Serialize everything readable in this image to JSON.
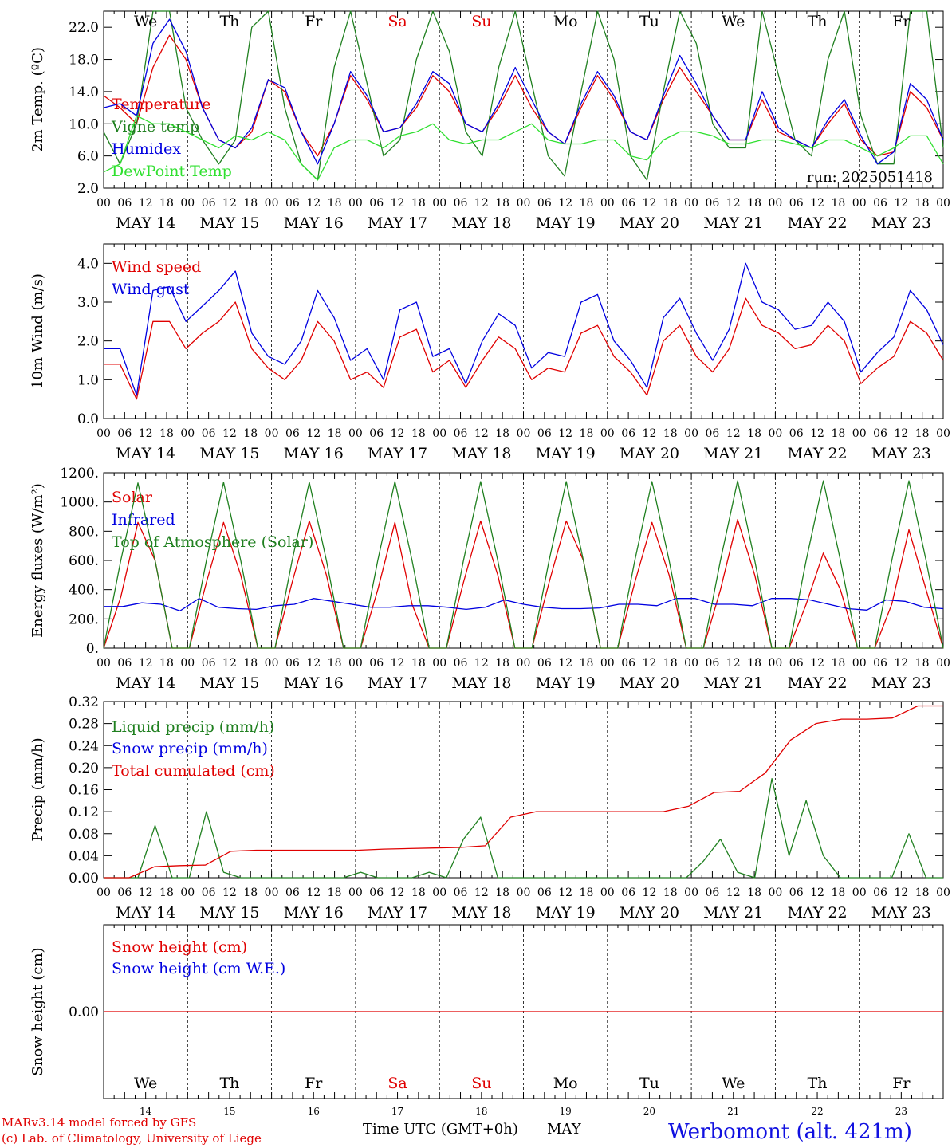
{
  "colors": {
    "temperature": "#e00000",
    "vigne": "#208020",
    "humidex": "#0000e0",
    "dewpoint": "#30e030",
    "weekend": "#e00000",
    "text": "#000000",
    "station": "#1010e0"
  },
  "footer": {
    "model_line1": "MARv3.14 model forced by GFS",
    "model_line2": "(c) Lab. of Climatology, University of Liege",
    "time_label": "Time UTC (GMT+0h)",
    "month_label": "MAY",
    "station": "Werbomont (alt. 421m)"
  },
  "days": [
    {
      "wd": "We",
      "date": "MAY 14",
      "num": "14",
      "weekend": false
    },
    {
      "wd": "Th",
      "date": "MAY 15",
      "num": "15",
      "weekend": false
    },
    {
      "wd": "Fr",
      "date": "MAY 16",
      "num": "16",
      "weekend": false
    },
    {
      "wd": "Sa",
      "date": "MAY 17",
      "num": "17",
      "weekend": true
    },
    {
      "wd": "Su",
      "date": "MAY 18",
      "num": "18",
      "weekend": true
    },
    {
      "wd": "Mo",
      "date": "MAY 19",
      "num": "19",
      "weekend": false
    },
    {
      "wd": "Tu",
      "date": "MAY 20",
      "num": "20",
      "weekend": false
    },
    {
      "wd": "We",
      "date": "MAY 21",
      "num": "21",
      "weekend": false
    },
    {
      "wd": "Th",
      "date": "MAY 22",
      "num": "22",
      "weekend": false
    },
    {
      "wd": "Fr",
      "date": "MAY 23",
      "num": "23",
      "weekend": false
    }
  ],
  "hour_ticks": [
    "00",
    "06",
    "12",
    "18"
  ],
  "end_tick": "00",
  "chart_data": [
    {
      "id": "temp",
      "type": "line",
      "ylabel": "2m Temp. (ºC)",
      "ylim": [
        2,
        24
      ],
      "yticks": [
        2.0,
        6.0,
        10.0,
        14.0,
        18.0,
        22.0
      ],
      "ytick_labels": [
        "2.0",
        "6.0",
        "10.0",
        "14.0",
        "18.0",
        "22.0"
      ],
      "run_label": "run: 2025051418",
      "series": [
        {
          "name": "Temperature",
          "color": "#e00000",
          "values": [
            13.5,
            12,
            10,
            17,
            21,
            18,
            12,
            8,
            7,
            9,
            15.5,
            14,
            9,
            6,
            10,
            16,
            13,
            9,
            9.5,
            12,
            16,
            14,
            10,
            9,
            12,
            16,
            12,
            9,
            7.5,
            12,
            16,
            13,
            9,
            8,
            13,
            17,
            14,
            11,
            8,
            8,
            13,
            9,
            8,
            7,
            10,
            12.5,
            8,
            6,
            6.5,
            14,
            12,
            8
          ]
        },
        {
          "name": "Vigne temp",
          "color": "#208020",
          "values": [
            9,
            5,
            10,
            24,
            24,
            12,
            8,
            5,
            8,
            22,
            24,
            12,
            5,
            3,
            17,
            24,
            15,
            6,
            8,
            18,
            24,
            19,
            9,
            6,
            17,
            24,
            15,
            6,
            3.5,
            14,
            24,
            18,
            6,
            3,
            14,
            24,
            20,
            10,
            7,
            7,
            24,
            16,
            8,
            6,
            18,
            24,
            11,
            5,
            5,
            24,
            24,
            7
          ]
        },
        {
          "name": "Humidex",
          "color": "#0000e0",
          "values": [
            12,
            12.5,
            11,
            20,
            23,
            19,
            12,
            8,
            7,
            9.5,
            15.5,
            14.5,
            9,
            5,
            10,
            16.5,
            13.5,
            9,
            9.5,
            12.5,
            16.5,
            15,
            10,
            9,
            12.5,
            17,
            13,
            9,
            7.5,
            12.5,
            16.5,
            13.5,
            9,
            8,
            13.5,
            18.5,
            15,
            11,
            8,
            8,
            14,
            9.5,
            8,
            7,
            10.5,
            13,
            8.5,
            5,
            6.5,
            15,
            13,
            8
          ]
        },
        {
          "name": "DewPoint Temp",
          "color": "#30e030",
          "values": [
            4,
            5,
            11,
            10,
            10,
            9,
            8,
            7,
            8.5,
            8,
            9,
            8,
            5,
            3,
            7,
            8,
            8,
            7,
            8.5,
            9,
            10,
            8,
            7.5,
            8,
            8,
            9,
            10,
            8,
            7.5,
            7.5,
            8,
            8,
            6,
            5.5,
            8,
            9,
            9,
            8.5,
            7.5,
            7.5,
            8,
            8,
            7.5,
            7,
            8,
            8,
            7,
            6,
            7,
            8.5,
            8.5,
            5
          ]
        }
      ],
      "day_annotations": true
    },
    {
      "id": "wind",
      "type": "line",
      "ylabel": "10m Wind (m/s)",
      "ylim": [
        0,
        4.5
      ],
      "yticks": [
        0,
        1,
        2,
        3,
        4
      ],
      "ytick_labels": [
        "0.0",
        "1.0",
        "2.0",
        "3.0",
        "4.0"
      ],
      "series": [
        {
          "name": "Wind speed",
          "color": "#e00000",
          "values": [
            1.4,
            1.4,
            0.5,
            2.5,
            2.5,
            1.8,
            2.2,
            2.5,
            3.0,
            1.8,
            1.3,
            1.0,
            1.5,
            2.5,
            2.0,
            1.0,
            1.2,
            0.8,
            2.1,
            2.3,
            1.2,
            1.5,
            0.8,
            1.5,
            2.1,
            1.8,
            1.0,
            1.3,
            1.2,
            2.2,
            2.4,
            1.6,
            1.2,
            0.6,
            2.0,
            2.4,
            1.6,
            1.2,
            1.8,
            3.1,
            2.4,
            2.2,
            1.8,
            1.9,
            2.4,
            2.0,
            0.9,
            1.3,
            1.6,
            2.5,
            2.2,
            1.5
          ]
        },
        {
          "name": "Wind gust",
          "color": "#0000e0",
          "values": [
            1.8,
            1.8,
            0.6,
            3.3,
            3.4,
            2.5,
            2.9,
            3.3,
            3.8,
            2.2,
            1.6,
            1.4,
            2.0,
            3.3,
            2.6,
            1.5,
            1.8,
            1.0,
            2.8,
            3.0,
            1.6,
            1.8,
            0.9,
            2.0,
            2.7,
            2.4,
            1.3,
            1.7,
            1.6,
            3.0,
            3.2,
            2.0,
            1.5,
            0.8,
            2.6,
            3.1,
            2.2,
            1.5,
            2.3,
            4.0,
            3.0,
            2.8,
            2.3,
            2.4,
            3.0,
            2.5,
            1.2,
            1.7,
            2.1,
            3.3,
            2.8,
            1.9
          ]
        }
      ]
    },
    {
      "id": "energy",
      "type": "line",
      "ylabel": "Energy fluxes (W/m²)",
      "ylim": [
        0,
        1200
      ],
      "yticks": [
        0,
        200,
        400,
        600,
        800,
        1000,
        1200
      ],
      "ytick_labels": [
        "0.",
        "200.",
        "400.",
        "600.",
        "800.",
        "1000.",
        "1200."
      ],
      "series": [
        {
          "name": "Solar",
          "color": "#e00000",
          "values": [
            0,
            350,
            860,
            600,
            0,
            0,
            450,
            860,
            500,
            0,
            0,
            450,
            870,
            500,
            0,
            0,
            400,
            860,
            300,
            0,
            0,
            450,
            870,
            500,
            0,
            0,
            450,
            870,
            600,
            0,
            0,
            450,
            860,
            500,
            0,
            0,
            400,
            880,
            500,
            0,
            0,
            300,
            650,
            400,
            0,
            0,
            300,
            810,
            400,
            0
          ]
        },
        {
          "name": "Infrared",
          "color": "#0000e0",
          "values": [
            285,
            285,
            310,
            300,
            255,
            340,
            280,
            270,
            265,
            290,
            300,
            340,
            320,
            300,
            280,
            280,
            290,
            290,
            280,
            265,
            280,
            330,
            300,
            280,
            270,
            270,
            275,
            300,
            300,
            290,
            340,
            340,
            300,
            300,
            290,
            340,
            340,
            330,
            300,
            270,
            260,
            330,
            320,
            280,
            270
          ]
        },
        {
          "name": "Top of Atmosphere (Solar)",
          "color": "#208020",
          "values": [
            0,
            600,
            1130,
            600,
            0,
            0,
            600,
            1135,
            600,
            0,
            0,
            600,
            1135,
            600,
            0,
            0,
            600,
            1140,
            600,
            0,
            0,
            600,
            1140,
            600,
            0,
            0,
            600,
            1140,
            600,
            0,
            0,
            600,
            1140,
            600,
            0,
            0,
            600,
            1145,
            600,
            0,
            0,
            600,
            1145,
            600,
            0,
            0,
            600,
            1145,
            600,
            0
          ]
        }
      ]
    },
    {
      "id": "precip",
      "type": "line",
      "ylabel": "Precip (mm/h)",
      "ylim": [
        0,
        0.32
      ],
      "yticks": [
        0,
        0.04,
        0.08,
        0.12,
        0.16,
        0.2,
        0.24,
        0.28,
        0.32
      ],
      "ytick_labels": [
        "0.00",
        "0.04",
        "0.08",
        "0.12",
        "0.16",
        "0.20",
        "0.24",
        "0.28",
        "0.32"
      ],
      "series": [
        {
          "name": "Liquid precip (mm/h)",
          "color": "#208020",
          "values": [
            0,
            0,
            0,
            0.095,
            0,
            0,
            0.12,
            0.01,
            0,
            0,
            0,
            0,
            0,
            0,
            0,
            0.01,
            0,
            0,
            0,
            0.01,
            0,
            0.07,
            0.11,
            0,
            0,
            0,
            0,
            0,
            0,
            0,
            0,
            0,
            0,
            0,
            0,
            0.03,
            0.07,
            0.01,
            0,
            0.18,
            0.04,
            0.14,
            0.04,
            0,
            0,
            0,
            0,
            0.08,
            0,
            0
          ]
        },
        {
          "name": "Snow precip (mm/h)",
          "color": "#0000e0",
          "values": []
        },
        {
          "name": "Total cumulated (cm)",
          "color": "#e00000",
          "values": [
            0,
            0,
            0.02,
            0.022,
            0.023,
            0.048,
            0.05,
            0.05,
            0.05,
            0.05,
            0.05,
            0.052,
            0.053,
            0.054,
            0.055,
            0.058,
            0.11,
            0.12,
            0.12,
            0.12,
            0.12,
            0.12,
            0.12,
            0.13,
            0.155,
            0.157,
            0.19,
            0.25,
            0.28,
            0.288,
            0.288,
            0.29,
            0.312,
            0.312
          ]
        }
      ]
    },
    {
      "id": "snow",
      "type": "line",
      "ylabel": "Snow height (cm)",
      "ylim": [
        -1,
        1
      ],
      "yticks": [
        0
      ],
      "ytick_labels": [
        "0.00"
      ],
      "series": [
        {
          "name": "Snow height (cm)",
          "color": "#e00000",
          "values": [
            0,
            0
          ]
        },
        {
          "name": "Snow height (cm W.E.)",
          "color": "#0000e0",
          "values": []
        }
      ]
    }
  ]
}
